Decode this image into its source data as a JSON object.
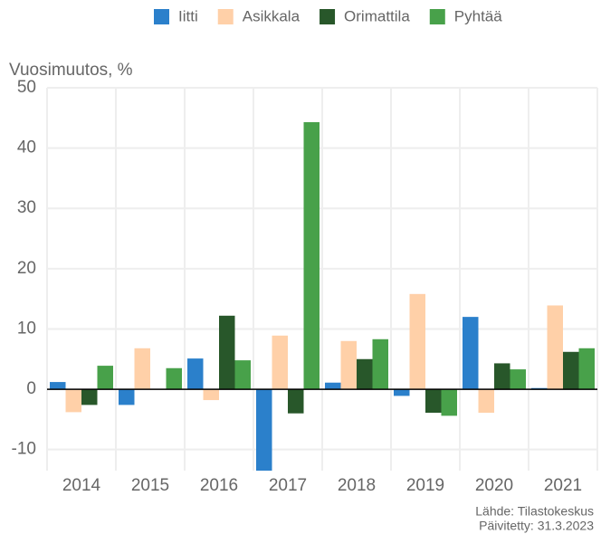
{
  "chart_data": {
    "type": "bar",
    "y_label": "Vuosimuutos, %",
    "categories": [
      "2014",
      "2015",
      "2016",
      "2017",
      "2018",
      "2019",
      "2020",
      "2021"
    ],
    "series": [
      {
        "name": "Iitti",
        "color": "#2b80cb",
        "values": [
          1.2,
          -2.6,
          5.1,
          -13.5,
          1.1,
          -1.1,
          12.0,
          0.2
        ]
      },
      {
        "name": "Asikkala",
        "color": "#ffd0a8",
        "values": [
          -3.8,
          6.8,
          -1.8,
          8.9,
          8.0,
          15.8,
          -3.9,
          13.9
        ]
      },
      {
        "name": "Orimattila",
        "color": "#28572a",
        "values": [
          -2.6,
          0,
          12.2,
          -4.0,
          5.0,
          -3.9,
          4.3,
          6.2
        ]
      },
      {
        "name": "Pyhtää",
        "color": "#48a14a",
        "values": [
          3.9,
          3.5,
          4.8,
          44.3,
          8.3,
          -4.4,
          3.3,
          6.8
        ]
      }
    ],
    "ylim": [
      -13.5,
      50
    ],
    "yticks": [
      -10,
      0,
      10,
      20,
      30,
      40,
      50
    ],
    "grid": true,
    "legend": "top",
    "source": "Lähde: Tilastokeskus",
    "updated": "Päivitetty: 31.3.2023"
  }
}
